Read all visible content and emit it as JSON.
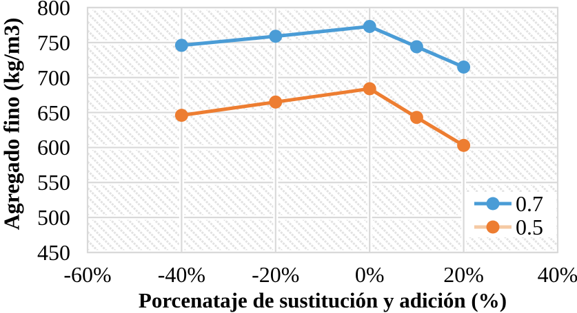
{
  "chart_data": {
    "type": "line",
    "title": "",
    "xlabel": "Porcenataje de sustitución y adición (%)",
    "ylabel": "Agregado fino (kg/m3)",
    "xlim": [
      -60,
      40
    ],
    "ylim": [
      450,
      800
    ],
    "x_ticks": [
      {
        "value": -60,
        "label": "-60%"
      },
      {
        "value": -40,
        "label": "-40%"
      },
      {
        "value": -20,
        "label": "-20%"
      },
      {
        "value": 0,
        "label": "0%"
      },
      {
        "value": 20,
        "label": "20%"
      },
      {
        "value": 40,
        "label": "40%"
      }
    ],
    "y_ticks": [
      {
        "value": 450,
        "label": "450"
      },
      {
        "value": 500,
        "label": "500"
      },
      {
        "value": 550,
        "label": "550"
      },
      {
        "value": 600,
        "label": "600"
      },
      {
        "value": 650,
        "label": "650"
      },
      {
        "value": 700,
        "label": "700"
      },
      {
        "value": 750,
        "label": "750"
      },
      {
        "value": 800,
        "label": "800"
      }
    ],
    "x": [
      -40,
      -20,
      0,
      10,
      20
    ],
    "series": [
      {
        "name": "0.7",
        "color": "#4A9CD6",
        "legend_line_color": "#4A9CD6",
        "values": [
          746,
          759,
          773,
          744,
          715
        ]
      },
      {
        "name": "0.5",
        "color": "#ED7D31",
        "legend_line_color": "#F5C9A3",
        "values": [
          646,
          665,
          684,
          643,
          603
        ]
      }
    ],
    "grid": true,
    "grid_color": "#D9D9D9",
    "plot_background_pattern": "diagonal-hatch",
    "hatch_color": "#E2E2E2",
    "legend_position": "inside-right",
    "legend_labels": [
      "0.7",
      "0.5"
    ]
  }
}
